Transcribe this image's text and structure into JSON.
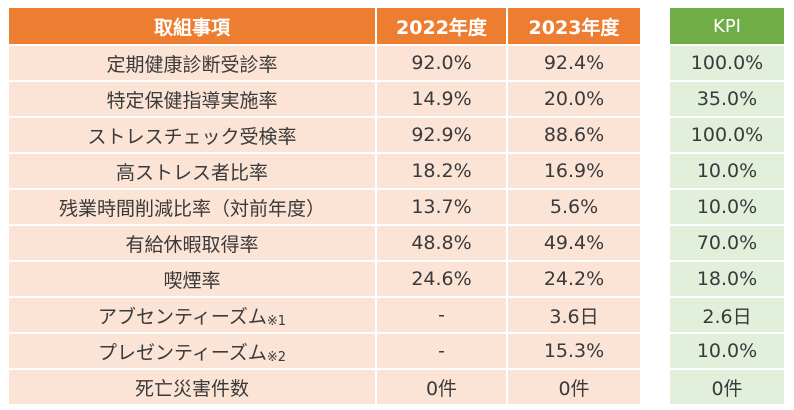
{
  "header": {
    "item": "取組事項",
    "y2022": "2022年度",
    "y2023": "2023年度",
    "kpi": "KPI"
  },
  "rows": [
    {
      "item": "定期健康診断受診率",
      "note": "",
      "y2022": "92.0%",
      "y2023": "92.4%",
      "kpi": "100.0%"
    },
    {
      "item": "特定保健指導実施率",
      "note": "",
      "y2022": "14.9%",
      "y2023": "20.0%",
      "kpi": "35.0%"
    },
    {
      "item": "ストレスチェック受検率",
      "note": "",
      "y2022": "92.9%",
      "y2023": "88.6%",
      "kpi": "100.0%"
    },
    {
      "item": "高ストレス者比率",
      "note": "",
      "y2022": "18.2%",
      "y2023": "16.9%",
      "kpi": "10.0%"
    },
    {
      "item": "残業時間削減比率（対前年度）",
      "note": "",
      "y2022": "13.7%",
      "y2023": "5.6%",
      "kpi": "10.0%"
    },
    {
      "item": "有給休暇取得率",
      "note": "",
      "y2022": "48.8%",
      "y2023": "49.4%",
      "kpi": "70.0%"
    },
    {
      "item": "喫煙率",
      "note": "",
      "y2022": "24.6%",
      "y2023": "24.2%",
      "kpi": "18.0%"
    },
    {
      "item": "アブセンティーズム",
      "note": "※1",
      "y2022": "-",
      "y2023": "3.6日",
      "kpi": "2.6日"
    },
    {
      "item": "プレゼンティーズム",
      "note": "※2",
      "y2022": "-",
      "y2023": "15.3%",
      "kpi": "10.0%"
    },
    {
      "item": "死亡災害件数",
      "note": "",
      "y2022": "0件",
      "y2023": "0件",
      "kpi": "0件"
    }
  ]
}
